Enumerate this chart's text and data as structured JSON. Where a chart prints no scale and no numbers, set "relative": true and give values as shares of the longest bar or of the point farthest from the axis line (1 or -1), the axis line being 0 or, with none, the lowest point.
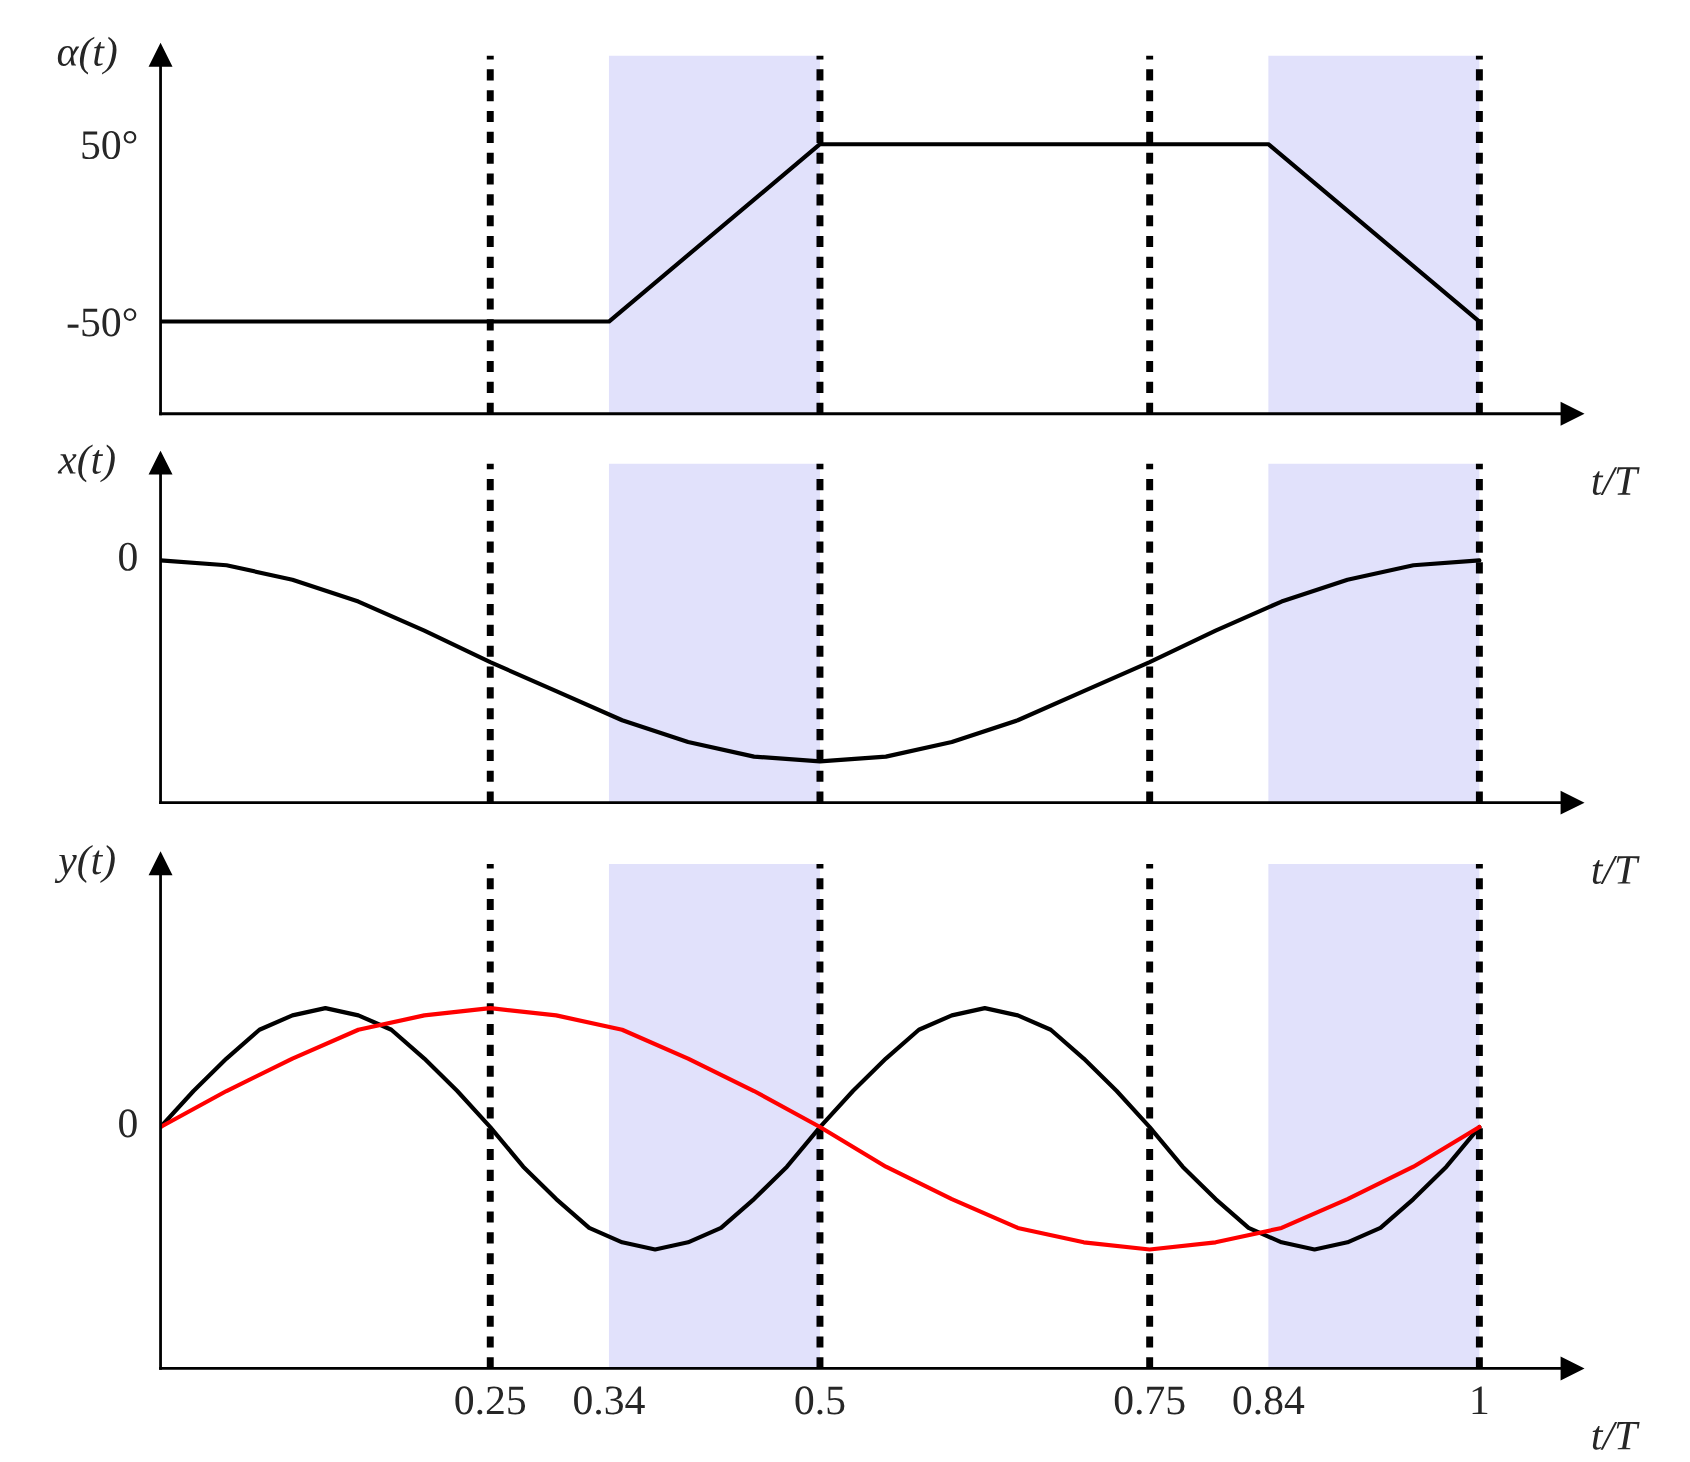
{
  "chart_data": [
    {
      "type": "line",
      "ylabel": "α(t)",
      "xlabel": "t/T",
      "xlim": [
        0,
        1.07
      ],
      "ylim": [
        -102,
        100
      ],
      "yticks": [
        {
          "value": 50,
          "label": "50°"
        },
        {
          "value": -50,
          "label": "-50°"
        }
      ],
      "tick_labels": "y",
      "series": [
        {
          "color": "#000000",
          "x": [
            0,
            0.34,
            0.5,
            0.84,
            1
          ],
          "values": [
            -50,
            -50,
            50,
            50,
            -50
          ]
        }
      ],
      "ref_lines": [
        {
          "axis": "x",
          "value": 0.25,
          "color": "#000000",
          "line_style": "dashed"
        },
        {
          "axis": "x",
          "value": 0.5,
          "color": "#000000",
          "line_style": "dashed"
        },
        {
          "axis": "x",
          "value": 0.75,
          "color": "#000000",
          "line_style": "dashed"
        },
        {
          "axis": "x",
          "value": 1,
          "color": "#000000",
          "line_style": "dashed"
        }
      ],
      "bands": [
        {
          "axis": "x",
          "from": 0.34,
          "to": 0.5,
          "color": "#e1e1fb"
        },
        {
          "axis": "x",
          "from": 0.84,
          "to": 1,
          "color": "#e1e1fb"
        }
      ]
    },
    {
      "type": "line",
      "ylabel": "x(t)",
      "xlabel": "t/T",
      "xlim": [
        0,
        1.07
      ],
      "relative": true,
      "tick_labels": false,
      "annotations": [
        {
          "text": "0",
          "x": 0,
          "y": 1.0
        }
      ],
      "series": [
        {
          "color": "#000000",
          "x": [
            0,
            0.05,
            0.1,
            0.15,
            0.2,
            0.25,
            0.3,
            0.35,
            0.4,
            0.45,
            0.5,
            0.55,
            0.6,
            0.65,
            0.7,
            0.75,
            0.8,
            0.85,
            0.9,
            0.95,
            1
          ],
          "values": [
            1.0,
            0.98,
            0.92,
            0.83,
            0.71,
            0.58,
            0.46,
            0.34,
            0.25,
            0.19,
            0.17,
            0.19,
            0.25,
            0.34,
            0.46,
            0.58,
            0.71,
            0.83,
            0.92,
            0.98,
            1.0
          ]
        }
      ],
      "ref_lines": [
        {
          "axis": "x",
          "value": 0.25,
          "color": "#000000",
          "line_style": "dashed"
        },
        {
          "axis": "x",
          "value": 0.5,
          "color": "#000000",
          "line_style": "dashed"
        },
        {
          "axis": "x",
          "value": 0.75,
          "color": "#000000",
          "line_style": "dashed"
        },
        {
          "axis": "x",
          "value": 1,
          "color": "#000000",
          "line_style": "dashed"
        }
      ],
      "bands": [
        {
          "axis": "x",
          "from": 0.34,
          "to": 0.5,
          "color": "#e1e1fb"
        },
        {
          "axis": "x",
          "from": 0.84,
          "to": 1,
          "color": "#e1e1fb"
        }
      ]
    },
    {
      "type": "line",
      "ylabel": "y(t)",
      "xlabel": "t/T",
      "xlim": [
        0,
        1.07
      ],
      "relative": true,
      "xticks": [
        0.25,
        0.34,
        0.5,
        0.75,
        0.84,
        1
      ],
      "tick_labels": "x",
      "annotations": [
        {
          "text": "0",
          "x": 0,
          "y": 0.67
        }
      ],
      "series": [
        {
          "color": "#000000",
          "x": [
            0,
            0.025,
            0.05,
            0.075,
            0.1,
            0.125,
            0.15,
            0.175,
            0.2,
            0.225,
            0.25,
            0.275,
            0.3,
            0.325,
            0.35,
            0.375,
            0.4,
            0.425,
            0.45,
            0.475,
            0.5,
            0.525,
            0.55,
            0.575,
            0.6,
            0.625,
            0.65,
            0.675,
            0.7,
            0.725,
            0.75,
            0.775,
            0.8,
            0.825,
            0.85,
            0.875,
            0.9,
            0.925,
            0.95,
            0.975,
            1
          ],
          "values": [
            0.67,
            0.77,
            0.86,
            0.94,
            0.98,
            1.0,
            0.98,
            0.94,
            0.86,
            0.77,
            0.67,
            0.56,
            0.47,
            0.39,
            0.35,
            0.33,
            0.35,
            0.39,
            0.47,
            0.56,
            0.67,
            0.77,
            0.86,
            0.94,
            0.98,
            1.0,
            0.98,
            0.94,
            0.86,
            0.77,
            0.67,
            0.56,
            0.47,
            0.39,
            0.35,
            0.33,
            0.35,
            0.39,
            0.47,
            0.56,
            0.67
          ]
        },
        {
          "color": "#ff0000",
          "x": [
            0,
            0.05,
            0.1,
            0.15,
            0.2,
            0.25,
            0.3,
            0.35,
            0.4,
            0.45,
            0.5,
            0.55,
            0.6,
            0.65,
            0.7,
            0.75,
            0.8,
            0.85,
            0.9,
            0.95,
            1
          ],
          "values": [
            0.67,
            0.77,
            0.86,
            0.94,
            0.98,
            1.0,
            0.98,
            0.94,
            0.86,
            0.77,
            0.67,
            0.56,
            0.47,
            0.39,
            0.35,
            0.33,
            0.35,
            0.39,
            0.47,
            0.56,
            0.67
          ]
        }
      ],
      "ref_lines": [
        {
          "axis": "x",
          "value": 0.25,
          "color": "#000000",
          "line_style": "dashed"
        },
        {
          "axis": "x",
          "value": 0.5,
          "color": "#000000",
          "line_style": "dashed"
        },
        {
          "axis": "x",
          "value": 0.75,
          "color": "#000000",
          "line_style": "dashed"
        },
        {
          "axis": "x",
          "value": 1,
          "color": "#000000",
          "line_style": "dashed"
        }
      ],
      "bands": [
        {
          "axis": "x",
          "from": 0.34,
          "to": 0.5,
          "color": "#e1e1fb"
        },
        {
          "axis": "x",
          "from": 0.84,
          "to": 1,
          "color": "#e1e1fb"
        }
      ]
    }
  ]
}
